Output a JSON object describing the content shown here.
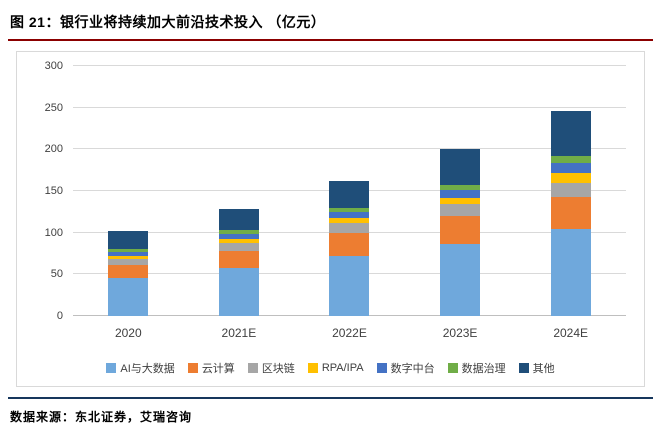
{
  "header": {
    "title": "图 21：银行业将持续加大前沿技术投入 （亿元）"
  },
  "footer": {
    "source": "数据来源：东北证券，艾瑞咨询"
  },
  "accent": {
    "title_rule": "#8B0000",
    "footer_rule": "#16365C"
  },
  "chart_data": {
    "type": "bar",
    "stacked": true,
    "title": "银行业将持续加大前沿技术投入",
    "unit": "亿元",
    "categories": [
      "2020",
      "2021E",
      "2022E",
      "2023E",
      "2024E"
    ],
    "series": [
      {
        "name": "AI与大数据",
        "color": "#6FA8DC",
        "values": [
          46,
          58,
          72,
          87,
          105
        ]
      },
      {
        "name": "云计算",
        "color": "#ED7D31",
        "values": [
          15,
          20,
          28,
          33,
          38
        ]
      },
      {
        "name": "区块链",
        "color": "#A6A6A6",
        "values": [
          8,
          10,
          12,
          14,
          17
        ]
      },
      {
        "name": "RPA/IPA",
        "color": "#FFC000",
        "values": [
          3,
          4,
          6,
          8,
          12
        ]
      },
      {
        "name": "数字中台",
        "color": "#4472C4",
        "values": [
          5,
          6,
          7,
          9,
          12
        ]
      },
      {
        "name": "数据治理",
        "color": "#70AD47",
        "values": [
          4,
          5,
          5,
          6,
          8
        ]
      },
      {
        "name": "其他",
        "color": "#1F4E79",
        "values": [
          21,
          25,
          32,
          43,
          54
        ]
      }
    ],
    "totals": [
      102,
      128,
      162,
      200,
      246
    ],
    "ylim": [
      0,
      300
    ],
    "yticks": [
      0,
      50,
      100,
      150,
      200,
      250,
      300
    ],
    "grid": true,
    "legend_position": "bottom"
  }
}
